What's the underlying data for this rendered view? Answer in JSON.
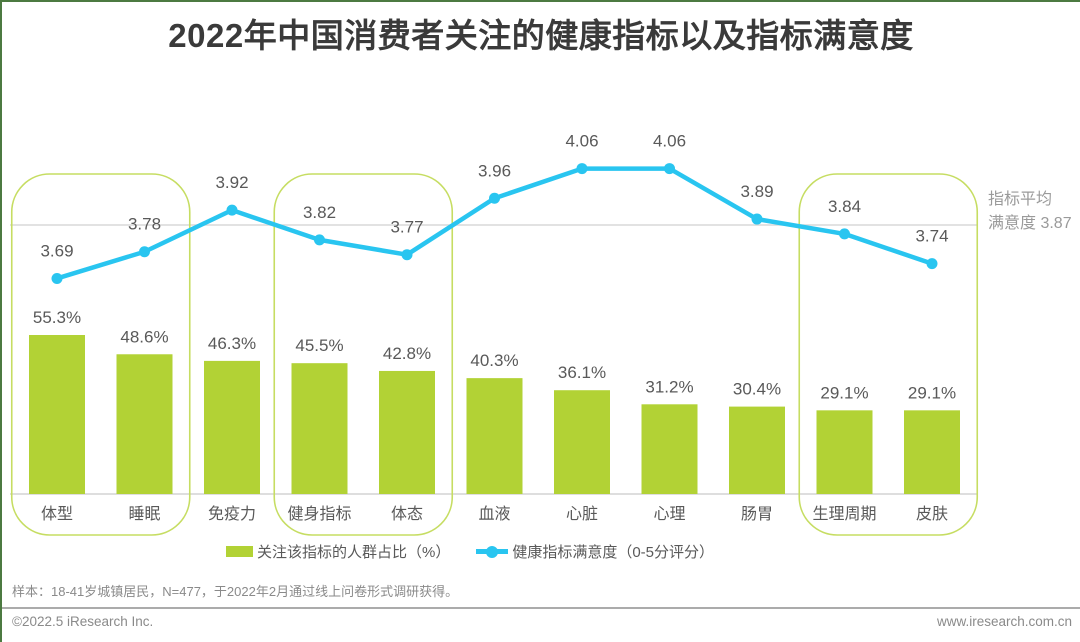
{
  "page": {
    "title": "2022年中国消费者关注的健康指标以及指标满意度",
    "footnote": "样本：18-41岁城镇居民，N=477，于2022年2月通过线上问卷形式调研获得。",
    "footer_left": "©2022.5 iResearch Inc.",
    "footer_right": "www.iresearch.com.cn"
  },
  "chart_data": {
    "type": "bar+line combo",
    "categories": [
      "体型",
      "睡眠",
      "免疫力",
      "健身指标",
      "体态",
      "血液",
      "心脏",
      "心理",
      "肠胃",
      "生理周期",
      "皮肤"
    ],
    "series": [
      {
        "name": "关注该指标的人群占比（%）",
        "type": "bar",
        "unit": "%",
        "values": [
          55.3,
          48.6,
          46.3,
          45.5,
          42.8,
          40.3,
          36.1,
          31.2,
          30.4,
          29.1,
          29.1
        ]
      },
      {
        "name": "健康指标满意度（0-5分评分）",
        "type": "line",
        "scale": "0-5分",
        "values": [
          3.69,
          3.78,
          3.92,
          3.82,
          3.77,
          3.96,
          4.06,
          4.06,
          3.89,
          3.84,
          3.74
        ]
      }
    ],
    "average_line": {
      "value": 3.87,
      "label_line1": "指标平均",
      "label_line2": "满意度 3.87"
    },
    "highlight_groups": [
      [
        0,
        1
      ],
      [
        3,
        4
      ],
      [
        9,
        10
      ]
    ],
    "legend_position": "bottom",
    "grid": "single horizontal average line"
  },
  "colors": {
    "bar": "#b2d235",
    "line": "#29c5f0",
    "highlight_box_border": "#c6dd62",
    "grid_line": "#d9d9d9",
    "axis_line": "#d4d4d4",
    "title_text": "#3a3a3a",
    "label_text": "#595959",
    "avg_label_text": "#9a9a9a",
    "footer_text": "#8a8a8a",
    "page_edge_green": "#4c7a41"
  }
}
